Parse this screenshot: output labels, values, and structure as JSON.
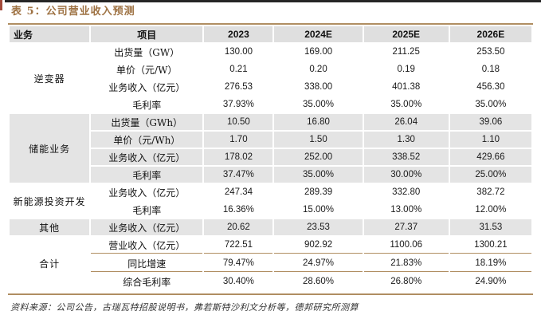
{
  "title": "表 5：公司营业收入预测",
  "footer": {
    "source": "资料来源：公司公告，古瑞瓦特招股说明书，弗若斯特沙利文分析等，德邦研究所测算"
  },
  "colors": {
    "accent": "#9E7243",
    "rule": "#B08E62",
    "header_bg": "#DFDFDF",
    "stripe_bg": "#E4E4E4",
    "top_bar": "#262626",
    "side_tab": "#A3493A"
  },
  "table": {
    "columns": [
      "业务",
      "项目",
      "2023",
      "2024E",
      "2025E",
      "2026E"
    ],
    "groups": [
      {
        "name": "逆变器",
        "striped": false,
        "rows": [
          {
            "item": "出货量（GW）",
            "values": [
              "130.00",
              "169.00",
              "211.25",
              "253.50"
            ]
          },
          {
            "item": "单价（元/W）",
            "values": [
              "0.21",
              "0.20",
              "0.19",
              "0.18"
            ]
          },
          {
            "item": "业务收入（亿元）",
            "values": [
              "276.53",
              "338.00",
              "401.38",
              "456.30"
            ]
          },
          {
            "item": "毛利率",
            "values": [
              "37.93%",
              "35.00%",
              "35.00%",
              "35.00%"
            ]
          }
        ]
      },
      {
        "name": "储能业务",
        "striped": true,
        "rows": [
          {
            "item": "出货量（GWh）",
            "values": [
              "10.50",
              "16.80",
              "26.04",
              "39.06"
            ]
          },
          {
            "item": "单价（元/Wh）",
            "values": [
              "1.70",
              "1.50",
              "1.30",
              "1.10"
            ]
          },
          {
            "item": "业务收入（亿元）",
            "values": [
              "178.02",
              "252.00",
              "338.52",
              "429.66"
            ]
          },
          {
            "item": "毛利率",
            "values": [
              "37.47%",
              "35.00%",
              "30.00%",
              "25.00%"
            ]
          }
        ]
      },
      {
        "name": "新能源投资开发",
        "striped": false,
        "rows": [
          {
            "item": "业务收入（亿元）",
            "values": [
              "247.34",
              "289.39",
              "332.80",
              "382.72"
            ]
          },
          {
            "item": "毛利率",
            "values": [
              "16.36%",
              "15.00%",
              "13.00%",
              "12.00%"
            ]
          }
        ]
      },
      {
        "name": "其他",
        "striped": true,
        "rows": [
          {
            "item": "业务收入（亿元）",
            "values": [
              "20.62",
              "23.53",
              "27.37",
              "31.53"
            ]
          }
        ]
      },
      {
        "name": "合计",
        "striped": false,
        "row_separators": true,
        "rows": [
          {
            "item": "营业收入（亿元）",
            "values": [
              "722.51",
              "902.92",
              "1100.06",
              "1300.21"
            ]
          },
          {
            "item": "同比增速",
            "values": [
              "79.47%",
              "24.97%",
              "21.83%",
              "18.19%"
            ]
          },
          {
            "item": "综合毛利率",
            "values": [
              "30.40%",
              "28.60%",
              "26.80%",
              "24.90%"
            ]
          }
        ]
      }
    ]
  }
}
